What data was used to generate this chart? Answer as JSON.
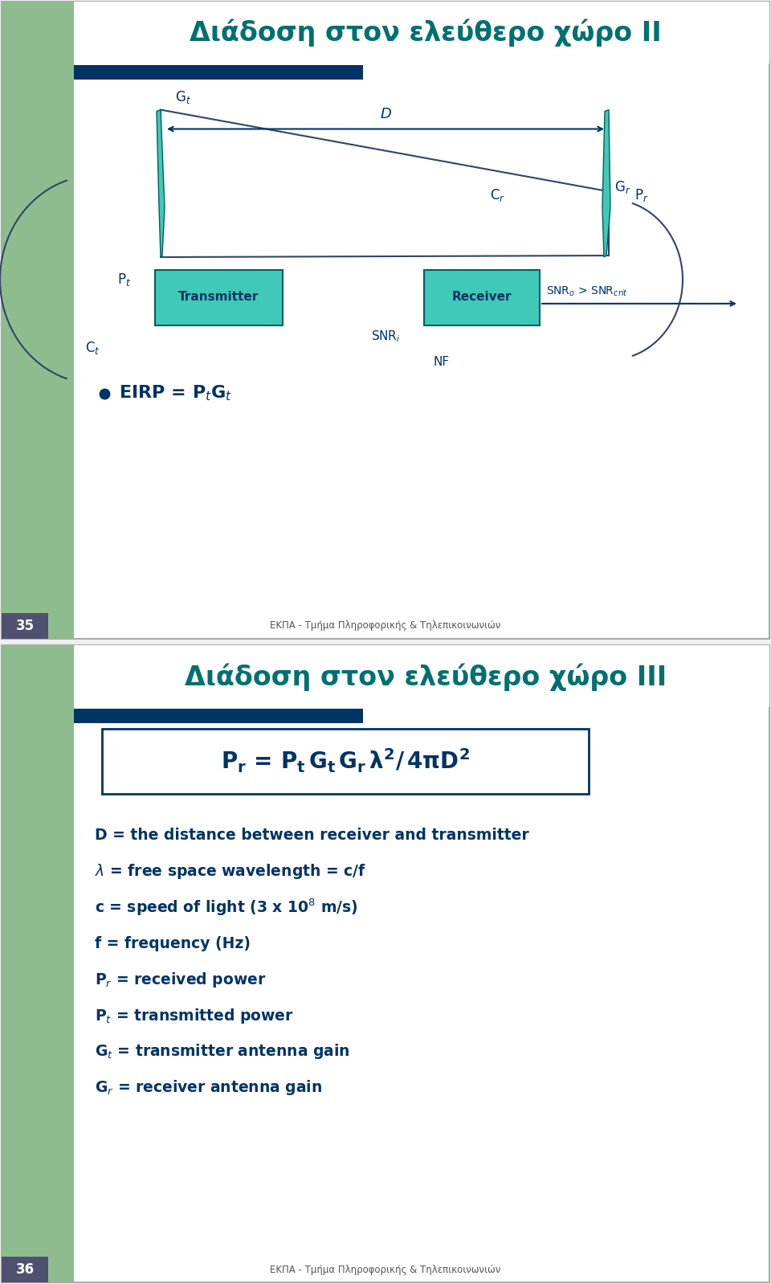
{
  "slide1": {
    "title": "Διάδοση στον ελεύθερο χώρο II",
    "slide_num": "35",
    "footer": "ΕΚΠΑ - Τμήμα Πληροφορικής & Τηλεπικοινωνιών"
  },
  "slide2": {
    "title": "Διάδοση στον ελεύθερο χώρο III",
    "slide_num": "36",
    "footer": "ΕΚΠΑ - Τμήμα Πληροφορικής & Τηλεπικοινωνιών"
  },
  "colors": {
    "title_teal": "#007070",
    "dark_blue": "#003366",
    "slide_bg": "#ffffff",
    "left_bar_green": "#8fbc8f",
    "header_bar_blue": "#003366",
    "slide_number_bg": "#505070",
    "teal_box": "#40c0b0",
    "teal_antenna": "#30b0a0"
  }
}
